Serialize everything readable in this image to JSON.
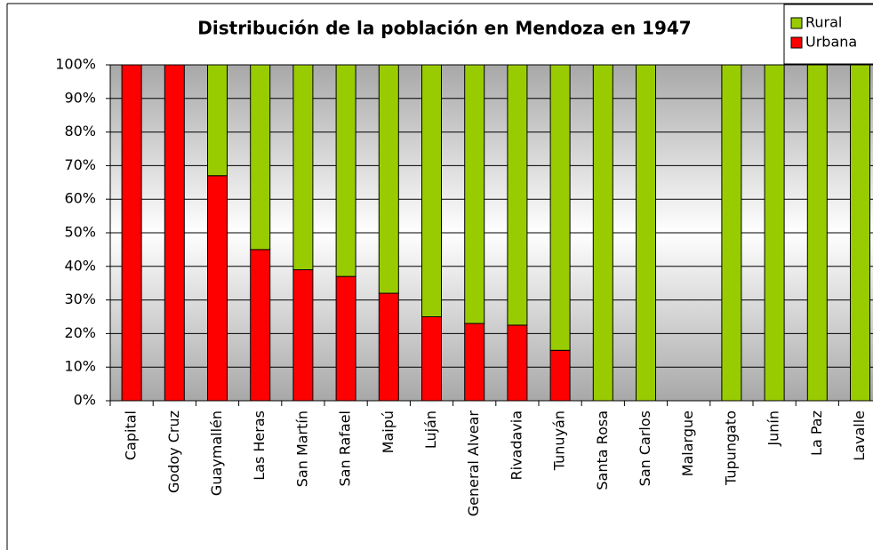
{
  "chart_data": {
    "type": "stacked_bar",
    "title": "Distribución de la población en Mendoza en 1947",
    "categories": [
      "Capital",
      "Godoy Cruz",
      "Guaymallén",
      "Las Heras",
      "San Martín",
      "San Rafael",
      "Maipú",
      "Luján",
      "General Alvear",
      "Rivadavia",
      "Tunuyán",
      "Santa Rosa",
      "San Carlos",
      "Malargue",
      "Tupungato",
      "Junín",
      "La Paz",
      "Lavalle"
    ],
    "series": [
      {
        "name": "Urbana",
        "color": "#ff0000",
        "values": [
          100,
          100,
          67,
          45,
          39,
          37,
          32,
          25,
          23,
          22.5,
          15,
          0,
          0,
          0,
          0,
          0,
          0,
          0
        ]
      },
      {
        "name": "Rural",
        "color": "#99cc00",
        "values": [
          0,
          0,
          33,
          55,
          61,
          63,
          68,
          75,
          77,
          77.5,
          85,
          100,
          100,
          0,
          100,
          100,
          100,
          100
        ]
      }
    ],
    "ylim": [
      0,
      100
    ],
    "yticks": [
      {
        "value": 0,
        "label": "0%"
      },
      {
        "value": 10,
        "label": "10%"
      },
      {
        "value": 20,
        "label": "20%"
      },
      {
        "value": 30,
        "label": "30%"
      },
      {
        "value": 40,
        "label": "40%"
      },
      {
        "value": 50,
        "label": "50%"
      },
      {
        "value": 60,
        "label": "60%"
      },
      {
        "value": 70,
        "label": "70%"
      },
      {
        "value": 80,
        "label": "80%"
      },
      {
        "value": 90,
        "label": "90%"
      },
      {
        "value": 100,
        "label": "100%"
      }
    ],
    "grid": true,
    "legend": "top-right"
  }
}
